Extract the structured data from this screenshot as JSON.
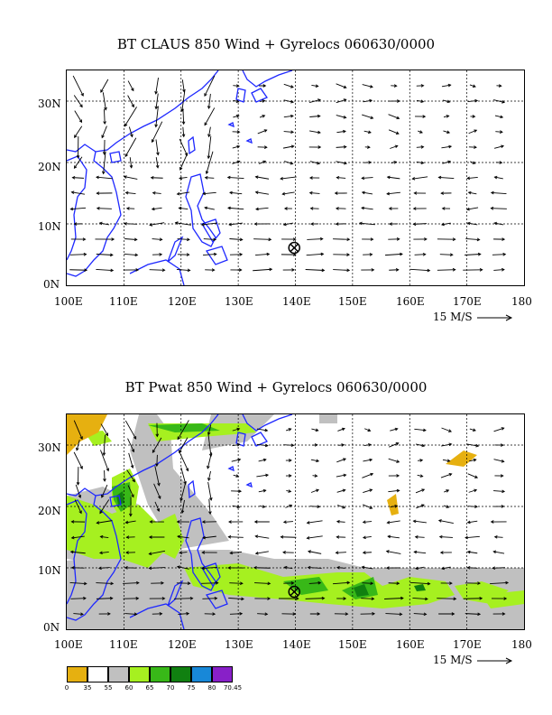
{
  "maps": [
    {
      "title": "BT CLAUS 850 Wind + Gyrelocs 060630/0000",
      "x_labels": [
        "100E",
        "110E",
        "120E",
        "130E",
        "140E",
        "150E",
        "160E",
        "170E",
        "180"
      ],
      "y_labels": [
        "0N",
        "10N",
        "20N",
        "30N"
      ],
      "scale_label": "15 M/S"
    },
    {
      "title": "BT Pwat 850 Wind + Gyrelocs 060630/0000",
      "x_labels": [
        "100E",
        "110E",
        "120E",
        "130E",
        "140E",
        "150E",
        "160E",
        "170E",
        "180"
      ],
      "y_labels": [
        "0N",
        "10N",
        "20N",
        "30N"
      ],
      "scale_label": "15 M/S"
    }
  ],
  "gyre_location": {
    "lon": 139.8,
    "lat": 6.1
  },
  "legend": {
    "ticks": [
      "0",
      "35",
      "55",
      "60",
      "65",
      "70",
      "75",
      "80",
      "70.45"
    ],
    "colors": [
      "#e6b010",
      "#ffffff",
      "#c0c0c0",
      "#a6f020",
      "#38b818",
      "#108010",
      "#1888d8",
      "#8820c8"
    ]
  },
  "colors": {
    "coast": "#1e28ff",
    "gray": "#c0c0c0",
    "light_green": "#a6f020",
    "mid_green": "#38b818",
    "dark_green": "#108010",
    "gold": "#e6b010"
  }
}
